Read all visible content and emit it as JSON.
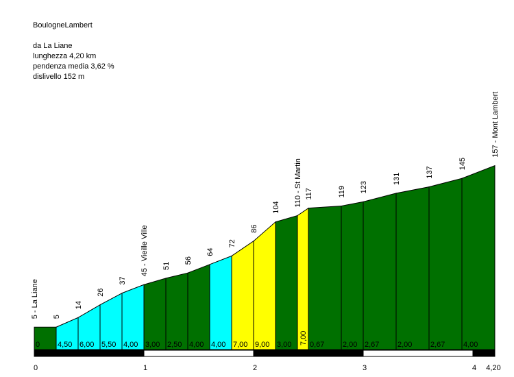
{
  "info": {
    "title": "BoulogneLambert",
    "start": "da La Liane",
    "length": "lunghezza 4,20 km",
    "gradient": "pendenza media 3,62 %",
    "climb": "dislivello 152 m"
  },
  "colors": {
    "green": "#007000",
    "cyan": "#00ffff",
    "yellow": "#ffff00",
    "black": "#000000",
    "white": "#ffffff"
  },
  "chart_data": {
    "type": "area",
    "title": "BoulogneLambert",
    "xlabel": "",
    "ylabel": "",
    "xlim": [
      0,
      4.2
    ],
    "ylim": [
      0,
      160
    ],
    "x_ticks": [
      "0",
      "1",
      "2",
      "3",
      "4",
      "4,20"
    ],
    "x_tick_values": [
      0,
      1,
      2,
      3,
      4,
      4.2
    ],
    "profile": [
      {
        "x": 0,
        "y": 5
      },
      {
        "x": 0.2,
        "y": 5
      },
      {
        "x": 0.4,
        "y": 14
      },
      {
        "x": 0.6,
        "y": 26
      },
      {
        "x": 0.8,
        "y": 37
      },
      {
        "x": 1.0,
        "y": 45
      },
      {
        "x": 1.2,
        "y": 51
      },
      {
        "x": 1.4,
        "y": 56
      },
      {
        "x": 1.6,
        "y": 64
      },
      {
        "x": 1.8,
        "y": 72
      },
      {
        "x": 2.0,
        "y": 86
      },
      {
        "x": 2.2,
        "y": 104
      },
      {
        "x": 2.4,
        "y": 110
      },
      {
        "x": 2.5,
        "y": 117
      },
      {
        "x": 2.8,
        "y": 119
      },
      {
        "x": 3.0,
        "y": 123
      },
      {
        "x": 3.3,
        "y": 131
      },
      {
        "x": 3.6,
        "y": 137
      },
      {
        "x": 3.9,
        "y": 145
      },
      {
        "x": 4.2,
        "y": 157
      }
    ],
    "segments": [
      {
        "from": 0,
        "to": 0.2,
        "gradient": "0",
        "color": "green"
      },
      {
        "from": 0.2,
        "to": 0.4,
        "gradient": "4,50",
        "color": "cyan"
      },
      {
        "from": 0.4,
        "to": 0.6,
        "gradient": "6,00",
        "color": "cyan"
      },
      {
        "from": 0.6,
        "to": 0.8,
        "gradient": "5,50",
        "color": "cyan"
      },
      {
        "from": 0.8,
        "to": 1.0,
        "gradient": "4,00",
        "color": "cyan"
      },
      {
        "from": 1.0,
        "to": 1.2,
        "gradient": "3,00",
        "color": "green"
      },
      {
        "from": 1.2,
        "to": 1.4,
        "gradient": "2,50",
        "color": "green"
      },
      {
        "from": 1.4,
        "to": 1.6,
        "gradient": "4,00",
        "color": "green"
      },
      {
        "from": 1.6,
        "to": 1.8,
        "gradient": "4,00",
        "color": "cyan"
      },
      {
        "from": 1.8,
        "to": 2.0,
        "gradient": "7,00",
        "color": "yellow"
      },
      {
        "from": 2.0,
        "to": 2.2,
        "gradient": "9,00",
        "color": "yellow"
      },
      {
        "from": 2.2,
        "to": 2.4,
        "gradient": "3,00",
        "color": "green"
      },
      {
        "from": 2.4,
        "to": 2.5,
        "gradient": "7,00",
        "color": "yellow",
        "vertical": true
      },
      {
        "from": 2.5,
        "to": 2.8,
        "gradient": "0,67",
        "color": "green"
      },
      {
        "from": 2.8,
        "to": 3.0,
        "gradient": "2,00",
        "color": "green"
      },
      {
        "from": 3.0,
        "to": 3.3,
        "gradient": "2,67",
        "color": "green"
      },
      {
        "from": 3.3,
        "to": 3.6,
        "gradient": "2,00",
        "color": "green"
      },
      {
        "from": 3.6,
        "to": 3.9,
        "gradient": "2,67",
        "color": "green"
      },
      {
        "from": 3.9,
        "to": 4.2,
        "gradient": "4,00",
        "color": "green"
      }
    ],
    "elevation_labels": [
      {
        "x": 0,
        "text": "5 - La Liane"
      },
      {
        "x": 0.2,
        "text": "5"
      },
      {
        "x": 0.4,
        "text": "14"
      },
      {
        "x": 0.6,
        "text": "26"
      },
      {
        "x": 0.8,
        "text": "37"
      },
      {
        "x": 1.0,
        "text": "45 - Vieille Ville"
      },
      {
        "x": 1.2,
        "text": "51"
      },
      {
        "x": 1.4,
        "text": "56"
      },
      {
        "x": 1.6,
        "text": "64"
      },
      {
        "x": 1.8,
        "text": "72"
      },
      {
        "x": 2.0,
        "text": "86"
      },
      {
        "x": 2.2,
        "text": "104"
      },
      {
        "x": 2.4,
        "text": "110 - St Martin"
      },
      {
        "x": 2.5,
        "text": "117"
      },
      {
        "x": 2.8,
        "text": "119"
      },
      {
        "x": 3.0,
        "text": "123"
      },
      {
        "x": 3.3,
        "text": "131"
      },
      {
        "x": 3.6,
        "text": "137"
      },
      {
        "x": 3.9,
        "text": "145"
      },
      {
        "x": 4.2,
        "text": "157 - Mont Lambert"
      }
    ],
    "km_bar": [
      {
        "from": 0,
        "to": 1,
        "color": "black"
      },
      {
        "from": 1,
        "to": 2,
        "color": "white"
      },
      {
        "from": 2,
        "to": 3,
        "color": "black"
      },
      {
        "from": 3,
        "to": 4,
        "color": "white"
      },
      {
        "from": 4,
        "to": 4.2,
        "color": "black"
      }
    ]
  }
}
